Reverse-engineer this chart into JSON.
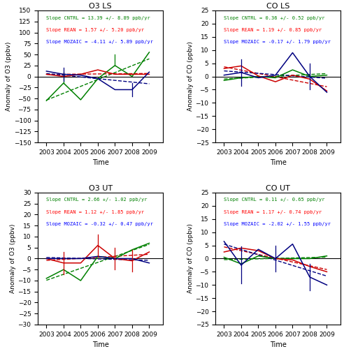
{
  "years": [
    2003,
    2004,
    2005,
    2006,
    2007,
    2008,
    2009
  ],
  "panels": [
    {
      "title": "O3 LS",
      "ylabel": "Anomaly of O3 (ppbv)",
      "ylim": [
        -150,
        150
      ],
      "yticks": [
        -150,
        -125,
        -100,
        -75,
        -50,
        -25,
        0,
        25,
        50,
        75,
        100,
        125,
        150
      ],
      "legend_texts": [
        "Slope CNTRL = 13.39 +/- 8.89 ppb/yr",
        "Slope REAN = 1.57 +/- 5.20 ppb/yr",
        "Slope MOZAIC = -4.11 +/- 5.89 ppb/yr"
      ],
      "legend_colors": [
        "green",
        "red",
        "blue"
      ],
      "cntrl": [
        -55,
        -15,
        -53,
        -5,
        25,
        0,
        55
      ],
      "rean": [
        5,
        0,
        5,
        15,
        5,
        5,
        5
      ],
      "mozaic": [
        12,
        5,
        3,
        -5,
        -30,
        -30,
        10
      ],
      "cntrl_err_lo": [
        0,
        0,
        0,
        0,
        0,
        0,
        0
      ],
      "cntrl_err_hi": [
        0,
        25,
        0,
        0,
        25,
        0,
        0
      ],
      "rean_err_lo": [
        0,
        0,
        0,
        0,
        0,
        0,
        0
      ],
      "rean_err_hi": [
        0,
        0,
        0,
        0,
        0,
        0,
        0
      ],
      "mozaic_err_lo": [
        0,
        15,
        0,
        0,
        0,
        15,
        0
      ],
      "mozaic_err_hi": [
        0,
        15,
        0,
        0,
        0,
        15,
        0
      ]
    },
    {
      "title": "CO LS",
      "ylabel": "Anomaly of CO (ppbv)",
      "ylim": [
        -25,
        25
      ],
      "yticks": [
        -25,
        -20,
        -15,
        -10,
        -5,
        0,
        5,
        10,
        15,
        20,
        25
      ],
      "legend_texts": [
        "Slope CNTRL = 0.36 +/- 0.52 ppb/yr",
        "Slope REAN = 1.19 +/- 0.85 ppb/yr",
        "Slope MOZAIC = -0.17 +/- 1.79 ppb/yr"
      ],
      "legend_colors": [
        "green",
        "red",
        "blue"
      ],
      "cntrl": [
        -1.5,
        -0.5,
        0.0,
        -0.5,
        2.5,
        0.0,
        0.5
      ],
      "rean": [
        3.0,
        4.0,
        0.2,
        -2.0,
        0.5,
        -1.0,
        -5.5
      ],
      "mozaic": [
        0.5,
        1.5,
        -0.5,
        0.5,
        9.0,
        0.0,
        -6.0
      ],
      "cntrl_err_lo": [
        0,
        0,
        0,
        0,
        0,
        0,
        0
      ],
      "cntrl_err_hi": [
        0,
        0,
        0,
        0,
        0,
        0,
        0
      ],
      "rean_err_lo": [
        0,
        0,
        0,
        0,
        0,
        0,
        0
      ],
      "rean_err_hi": [
        0,
        0,
        0,
        0,
        0,
        0,
        0
      ],
      "mozaic_err_lo": [
        0,
        5,
        0,
        0,
        0,
        5,
        0
      ],
      "mozaic_err_hi": [
        0,
        5,
        0,
        0,
        0,
        5,
        0
      ]
    },
    {
      "title": "O3 UT",
      "ylabel": "Anomaly of O3 (ppbv)",
      "ylim": [
        -30,
        30
      ],
      "yticks": [
        -30,
        -25,
        -20,
        -15,
        -10,
        -5,
        0,
        5,
        10,
        15,
        20,
        25,
        30
      ],
      "legend_texts": [
        "Slope CNTRL = 2.66 +/- 1.02 ppb/yr",
        "Slope REAN = 1.12 +/- 1.85 ppb/yr",
        "Slope MOZAIC = -0.32 +/- 0.47 ppb/yr"
      ],
      "legend_colors": [
        "green",
        "red",
        "blue"
      ],
      "cntrl": [
        -9.0,
        -5.0,
        -10.0,
        1.0,
        0.0,
        4.0,
        7.0
      ],
      "rean": [
        0.0,
        -2.0,
        -2.0,
        6.0,
        0.0,
        -1.0,
        3.0
      ],
      "mozaic": [
        0.0,
        0.0,
        0.0,
        1.0,
        0.0,
        0.0,
        -2.0
      ],
      "cntrl_err_lo": [
        0,
        0,
        0,
        0,
        0,
        0,
        0
      ],
      "cntrl_err_hi": [
        0,
        0,
        0,
        0,
        0,
        0,
        0
      ],
      "rean_err_lo": [
        0,
        5,
        0,
        5,
        5,
        5,
        0
      ],
      "rean_err_hi": [
        0,
        5,
        0,
        5,
        5,
        5,
        0
      ],
      "mozaic_err_lo": [
        0,
        0,
        0,
        0,
        0,
        0,
        0
      ],
      "mozaic_err_hi": [
        0,
        0,
        0,
        0,
        0,
        0,
        0
      ]
    },
    {
      "title": "CO UT",
      "ylabel": "Anomaly of CO (ppbv)",
      "ylim": [
        -25,
        25
      ],
      "yticks": [
        -25,
        -20,
        -15,
        -10,
        -5,
        0,
        5,
        10,
        15,
        20,
        25
      ],
      "legend_texts": [
        "Slope CNTRL = 0.11 +/- 0.65 ppb/yr",
        "Slope REAN = 1.17 +/- 0.74 ppb/yr",
        "Slope MOZAIC = -2.02 +/- 1.55 ppb/yr"
      ],
      "legend_colors": [
        "green",
        "red",
        "blue"
      ],
      "cntrl": [
        0.5,
        -2.0,
        1.0,
        0.0,
        0.0,
        0.0,
        1.0
      ],
      "rean": [
        2.5,
        4.0,
        3.0,
        0.0,
        -0.5,
        -3.0,
        -5.0
      ],
      "mozaic": [
        6.5,
        -2.5,
        3.5,
        0.0,
        5.5,
        -7.0,
        -10.0
      ],
      "cntrl_err_lo": [
        0,
        0,
        0,
        0,
        0,
        0,
        0
      ],
      "cntrl_err_hi": [
        0,
        0,
        0,
        0,
        0,
        0,
        0
      ],
      "rean_err_lo": [
        0,
        0,
        0,
        0,
        0,
        0,
        0
      ],
      "rean_err_hi": [
        0,
        0,
        0,
        0,
        0,
        0,
        0
      ],
      "mozaic_err_lo": [
        0,
        7,
        0,
        5,
        0,
        5,
        0
      ],
      "mozaic_err_hi": [
        0,
        7,
        0,
        5,
        0,
        5,
        0
      ]
    }
  ],
  "colors": {
    "cntrl": "#008000",
    "rean": "#cc0000",
    "mozaic": "#000080",
    "zero": "#000000"
  },
  "figsize": [
    4.92,
    5.0
  ],
  "dpi": 100
}
